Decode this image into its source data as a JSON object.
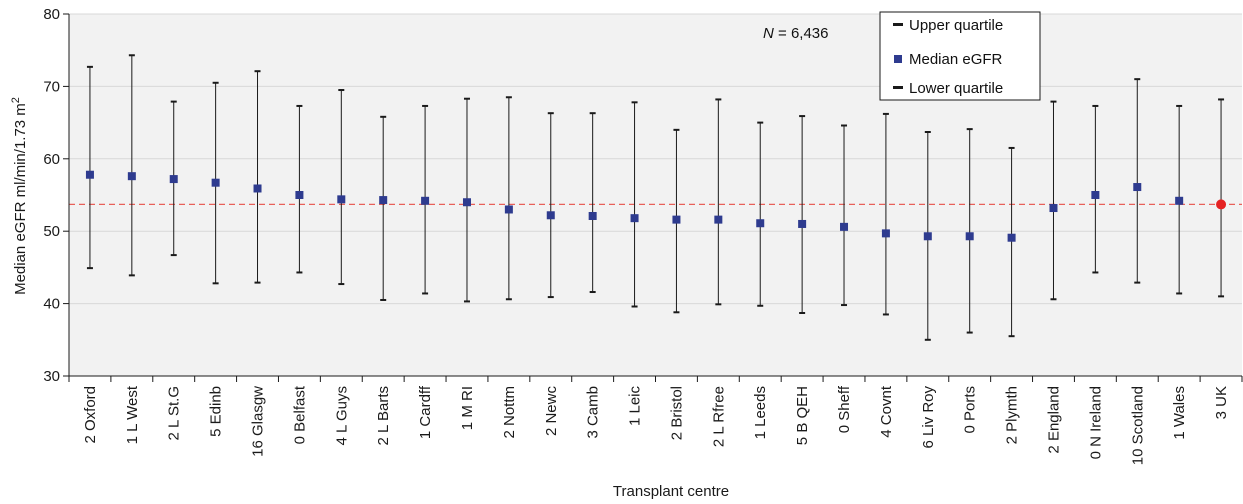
{
  "chart_data": {
    "type": "error-bar",
    "xlabel": "Transplant centre",
    "ylabel_main": "Median eGFR ml/min/1.73 m",
    "ylabel_sup": "2",
    "ylim": [
      30,
      80
    ],
    "yticks": [
      30,
      40,
      50,
      60,
      70,
      80
    ],
    "grid": "horizontal",
    "reference_line": {
      "value": 53.7,
      "style": "dashed",
      "color": "#e8605a"
    },
    "annotation": {
      "italic": "N",
      "rest": " = 6,436"
    },
    "legend": {
      "position": "top-right",
      "entries": [
        "Upper quartile",
        "Median eGFR",
        "Lower quartile"
      ]
    },
    "colors": {
      "median": "#2e3b8f",
      "highlight": "#e52222",
      "whisker": "#1a1a1a",
      "grid": "#d8d8d8",
      "plot_bg": "#f2f2f2"
    },
    "categories": [
      "2 Oxford",
      "1 L West",
      "2 L St.G",
      "5 Edinb",
      "16 Glasgw",
      "0 Belfast",
      "4 L Guys",
      "2 L Barts",
      "1 Cardff",
      "1 M RI",
      "2 Nottm",
      "2 Newc",
      "3 Camb",
      "1 Leic",
      "2 Bristol",
      "2 L Rfree",
      "1 Leeds",
      "5 B QEH",
      "0 Sheff",
      "4 Covnt",
      "6 Liv Roy",
      "0 Ports",
      "2 Plymth",
      "2 England",
      "0 N Ireland",
      "10 Scotland",
      "1 Wales",
      "3 UK"
    ],
    "series": [
      {
        "name": "Upper quartile",
        "values": [
          72.7,
          74.3,
          67.9,
          70.5,
          72.1,
          67.3,
          69.5,
          65.8,
          67.3,
          68.3,
          68.5,
          66.3,
          66.3,
          67.8,
          64.0,
          68.2,
          65.0,
          65.9,
          64.6,
          66.2,
          63.7,
          64.1,
          61.5,
          67.9,
          67.3,
          71.0,
          67.3,
          68.2
        ]
      },
      {
        "name": "Median eGFR",
        "values": [
          57.8,
          57.6,
          57.2,
          56.7,
          55.9,
          55.0,
          54.4,
          54.3,
          54.2,
          54.0,
          53.0,
          52.2,
          52.1,
          51.8,
          51.6,
          51.6,
          51.1,
          51.0,
          50.6,
          49.7,
          49.3,
          49.3,
          49.1,
          53.2,
          55.0,
          56.1,
          54.2,
          53.7
        ]
      },
      {
        "name": "Lower quartile",
        "values": [
          44.9,
          43.9,
          46.7,
          42.8,
          42.9,
          44.3,
          42.7,
          40.5,
          41.4,
          40.3,
          40.6,
          40.9,
          41.6,
          39.6,
          38.8,
          39.9,
          39.7,
          38.7,
          39.8,
          38.5,
          35.0,
          36.0,
          35.5,
          40.6,
          44.3,
          42.9,
          41.4,
          41.0
        ]
      }
    ],
    "highlight_category": "3 UK"
  }
}
